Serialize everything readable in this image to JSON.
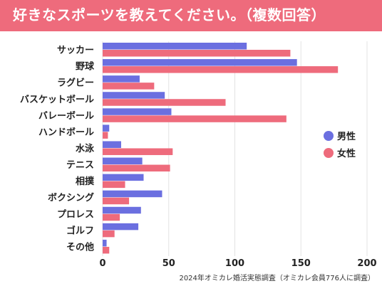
{
  "header": {
    "title": "好きなスポーツを教えてください。（複数回答）",
    "background_color": "#ee6b7c"
  },
  "footer": {
    "source": "2024年オミカレ婚活実態調査（オミカレ会員776人に調査）"
  },
  "chart_data": {
    "type": "bar",
    "orientation": "horizontal",
    "categories": [
      "サッカー",
      "野球",
      "ラグビー",
      "バスケットボール",
      "バレーボール",
      "ハンドボール",
      "水泳",
      "テニス",
      "相撲",
      "ボクシング",
      "プロレス",
      "ゴルフ",
      "その他"
    ],
    "series": [
      {
        "name": "男性",
        "color": "#6b6fe0",
        "values": [
          109,
          147,
          28,
          47,
          52,
          5,
          14,
          30,
          31,
          45,
          29,
          27,
          3
        ]
      },
      {
        "name": "女性",
        "color": "#ee6b7c",
        "values": [
          142,
          178,
          39,
          93,
          139,
          4,
          53,
          51,
          17,
          20,
          13,
          9,
          5
        ]
      }
    ],
    "xlim": [
      0,
      200
    ],
    "xticks": [
      "0",
      "50",
      "100",
      "150",
      "200"
    ],
    "grid": true,
    "legend_position": "right"
  }
}
